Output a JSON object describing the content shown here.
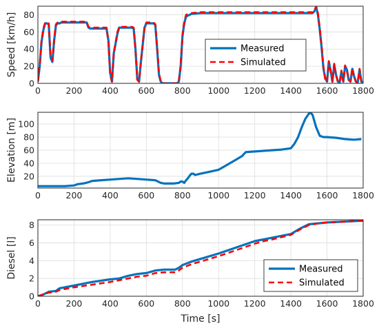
{
  "colors": {
    "measured": "#0072BD",
    "simulated": "#FF0000",
    "grid": "#dcdcdc",
    "axis": "#262626"
  },
  "chart_data": [
    {
      "type": "line",
      "xlabel": "",
      "ylabel": "Speed [km/h]",
      "xlim": [
        0,
        1800
      ],
      "ylim": [
        0,
        90
      ],
      "xticks": [
        0,
        200,
        400,
        600,
        800,
        1000,
        1200,
        1400,
        1600,
        1800
      ],
      "yticks": [
        0,
        20,
        40,
        60,
        80
      ],
      "grid": true,
      "legend": "center-right",
      "series": [
        {
          "name": "Measured",
          "style": "solid",
          "x": [
            0,
            10,
            20,
            30,
            40,
            50,
            60,
            70,
            80,
            90,
            100,
            110,
            120,
            130,
            150,
            200,
            250,
            270,
            280,
            290,
            300,
            350,
            380,
            390,
            400,
            410,
            420,
            440,
            450,
            500,
            520,
            530,
            540,
            550,
            560,
            570,
            580,
            590,
            600,
            640,
            650,
            660,
            670,
            680,
            690,
            700,
            720,
            760,
            770,
            780,
            790,
            800,
            810,
            820,
            850,
            900,
            1000,
            1100,
            1200,
            1300,
            1400,
            1440,
            1450,
            1480,
            1500,
            1520,
            1530,
            1540,
            1550,
            1560,
            1570,
            1580,
            1590,
            1600,
            1610,
            1620,
            1630,
            1640,
            1650,
            1660,
            1670,
            1680,
            1690,
            1700,
            1710,
            1720,
            1730,
            1740,
            1750,
            1760,
            1770,
            1780,
            1790,
            1800
          ],
          "y": [
            2,
            20,
            48,
            62,
            70,
            70,
            69,
            30,
            25,
            50,
            68,
            70,
            70,
            71,
            71,
            71,
            71,
            71,
            65,
            64,
            64,
            64,
            64,
            50,
            12,
            2,
            35,
            58,
            65,
            65,
            65,
            64,
            40,
            5,
            2,
            25,
            45,
            65,
            70,
            70,
            68,
            40,
            10,
            2,
            0,
            0,
            0,
            0,
            0,
            2,
            20,
            55,
            70,
            78,
            81,
            82,
            82,
            82,
            82,
            82,
            82,
            82,
            82,
            82,
            82,
            82,
            84,
            89,
            80,
            62,
            42,
            18,
            6,
            2,
            25,
            15,
            2,
            22,
            10,
            2,
            1,
            14,
            2,
            20,
            16,
            4,
            2,
            17,
            8,
            2,
            1,
            16,
            2,
            1
          ]
        },
        {
          "name": "Simulated",
          "style": "dashed",
          "x": [
            0,
            10,
            20,
            30,
            40,
            50,
            60,
            70,
            80,
            90,
            100,
            110,
            120,
            130,
            150,
            200,
            250,
            270,
            280,
            290,
            300,
            350,
            380,
            390,
            400,
            410,
            420,
            440,
            450,
            500,
            520,
            530,
            540,
            550,
            560,
            570,
            580,
            590,
            600,
            640,
            650,
            660,
            670,
            680,
            690,
            700,
            720,
            760,
            770,
            780,
            790,
            800,
            810,
            820,
            850,
            900,
            1000,
            1100,
            1200,
            1300,
            1400,
            1440,
            1450,
            1480,
            1500,
            1520,
            1530,
            1540,
            1550,
            1560,
            1570,
            1580,
            1590,
            1600,
            1610,
            1620,
            1630,
            1640,
            1650,
            1660,
            1670,
            1680,
            1690,
            1700,
            1710,
            1720,
            1730,
            1740,
            1750,
            1760,
            1770,
            1780,
            1790,
            1800
          ],
          "y": [
            2,
            22,
            50,
            64,
            71,
            71,
            70,
            33,
            27,
            52,
            69,
            71,
            71,
            72,
            72,
            72,
            72,
            72,
            66,
            65,
            65,
            65,
            65,
            48,
            10,
            2,
            36,
            60,
            66,
            66,
            66,
            65,
            38,
            4,
            2,
            26,
            46,
            66,
            71,
            71,
            69,
            42,
            12,
            2,
            0,
            0,
            0,
            0,
            0,
            2,
            22,
            57,
            72,
            80,
            82,
            83,
            83,
            83,
            83,
            83,
            83,
            83,
            83,
            83,
            83,
            83,
            85,
            90,
            82,
            64,
            44,
            20,
            5,
            2,
            26,
            14,
            2,
            23,
            9,
            2,
            1,
            15,
            2,
            21,
            15,
            4,
            2,
            18,
            7,
            2,
            1,
            17,
            2,
            1
          ]
        }
      ]
    },
    {
      "type": "line",
      "xlabel": "",
      "ylabel": "Elevation [m]",
      "xlim": [
        0,
        1800
      ],
      "ylim": [
        2,
        118
      ],
      "xticks": [
        0,
        200,
        400,
        600,
        800,
        1000,
        1200,
        1400,
        1600,
        1800
      ],
      "yticks": [
        20,
        40,
        60,
        80,
        100
      ],
      "grid": true,
      "series": [
        {
          "name": "Measured",
          "style": "solid",
          "x": [
            0,
            50,
            100,
            150,
            200,
            220,
            250,
            280,
            300,
            350,
            400,
            450,
            500,
            550,
            600,
            650,
            680,
            700,
            750,
            780,
            790,
            800,
            810,
            820,
            830,
            840,
            850,
            860,
            870,
            900,
            950,
            1000,
            1050,
            1100,
            1130,
            1150,
            1200,
            1250,
            1300,
            1350,
            1400,
            1420,
            1440,
            1460,
            1480,
            1500,
            1510,
            1520,
            1540,
            1560,
            1580,
            1600,
            1650,
            1700,
            1750,
            1790
          ],
          "y": [
            5,
            5,
            5,
            5,
            6,
            8,
            9,
            11,
            13,
            14,
            15,
            16,
            17,
            16,
            15,
            14,
            10,
            9,
            9,
            10,
            12,
            12,
            10,
            14,
            17,
            21,
            24,
            24,
            22,
            24,
            27,
            30,
            38,
            46,
            51,
            57,
            58,
            59,
            60,
            61,
            63,
            70,
            80,
            95,
            108,
            116,
            117,
            114,
            95,
            82,
            80,
            80,
            79,
            77,
            76,
            77
          ]
        }
      ]
    },
    {
      "type": "line",
      "xlabel": "Time [s]",
      "ylabel": "Diesel [l]",
      "xlim": [
        0,
        1800
      ],
      "ylim": [
        0,
        8.6
      ],
      "xticks": [
        0,
        200,
        400,
        600,
        800,
        1000,
        1200,
        1400,
        1600,
        1800
      ],
      "yticks": [
        0,
        2,
        4,
        6,
        8
      ],
      "grid": true,
      "legend": "bottom-right",
      "series": [
        {
          "name": "Measured",
          "style": "solid",
          "x": [
            0,
            30,
            60,
            100,
            120,
            200,
            300,
            400,
            450,
            500,
            550,
            600,
            650,
            700,
            760,
            780,
            800,
            850,
            900,
            1000,
            1100,
            1200,
            1250,
            1300,
            1400,
            1450,
            1500,
            1550,
            1600,
            1700,
            1800
          ],
          "y": [
            0,
            0.2,
            0.5,
            0.6,
            0.9,
            1.2,
            1.6,
            1.9,
            2.0,
            2.3,
            2.5,
            2.6,
            2.9,
            3.0,
            3.0,
            3.2,
            3.5,
            3.9,
            4.2,
            4.8,
            5.5,
            6.2,
            6.4,
            6.6,
            7.0,
            7.6,
            8.1,
            8.2,
            8.3,
            8.4,
            8.5
          ]
        },
        {
          "name": "Simulated",
          "style": "dashed",
          "x": [
            0,
            30,
            60,
            100,
            120,
            200,
            300,
            400,
            450,
            500,
            550,
            600,
            650,
            700,
            760,
            780,
            800,
            850,
            900,
            1000,
            1100,
            1200,
            1250,
            1300,
            1400,
            1450,
            1500,
            1550,
            1600,
            1700,
            1800
          ],
          "y": [
            0,
            0.2,
            0.4,
            0.5,
            0.7,
            1.0,
            1.3,
            1.6,
            1.8,
            2.0,
            2.2,
            2.3,
            2.6,
            2.7,
            2.7,
            2.9,
            3.2,
            3.6,
            3.9,
            4.5,
            5.2,
            5.9,
            6.2,
            6.4,
            6.9,
            7.5,
            8.0,
            8.2,
            8.3,
            8.4,
            8.5
          ]
        }
      ]
    }
  ]
}
